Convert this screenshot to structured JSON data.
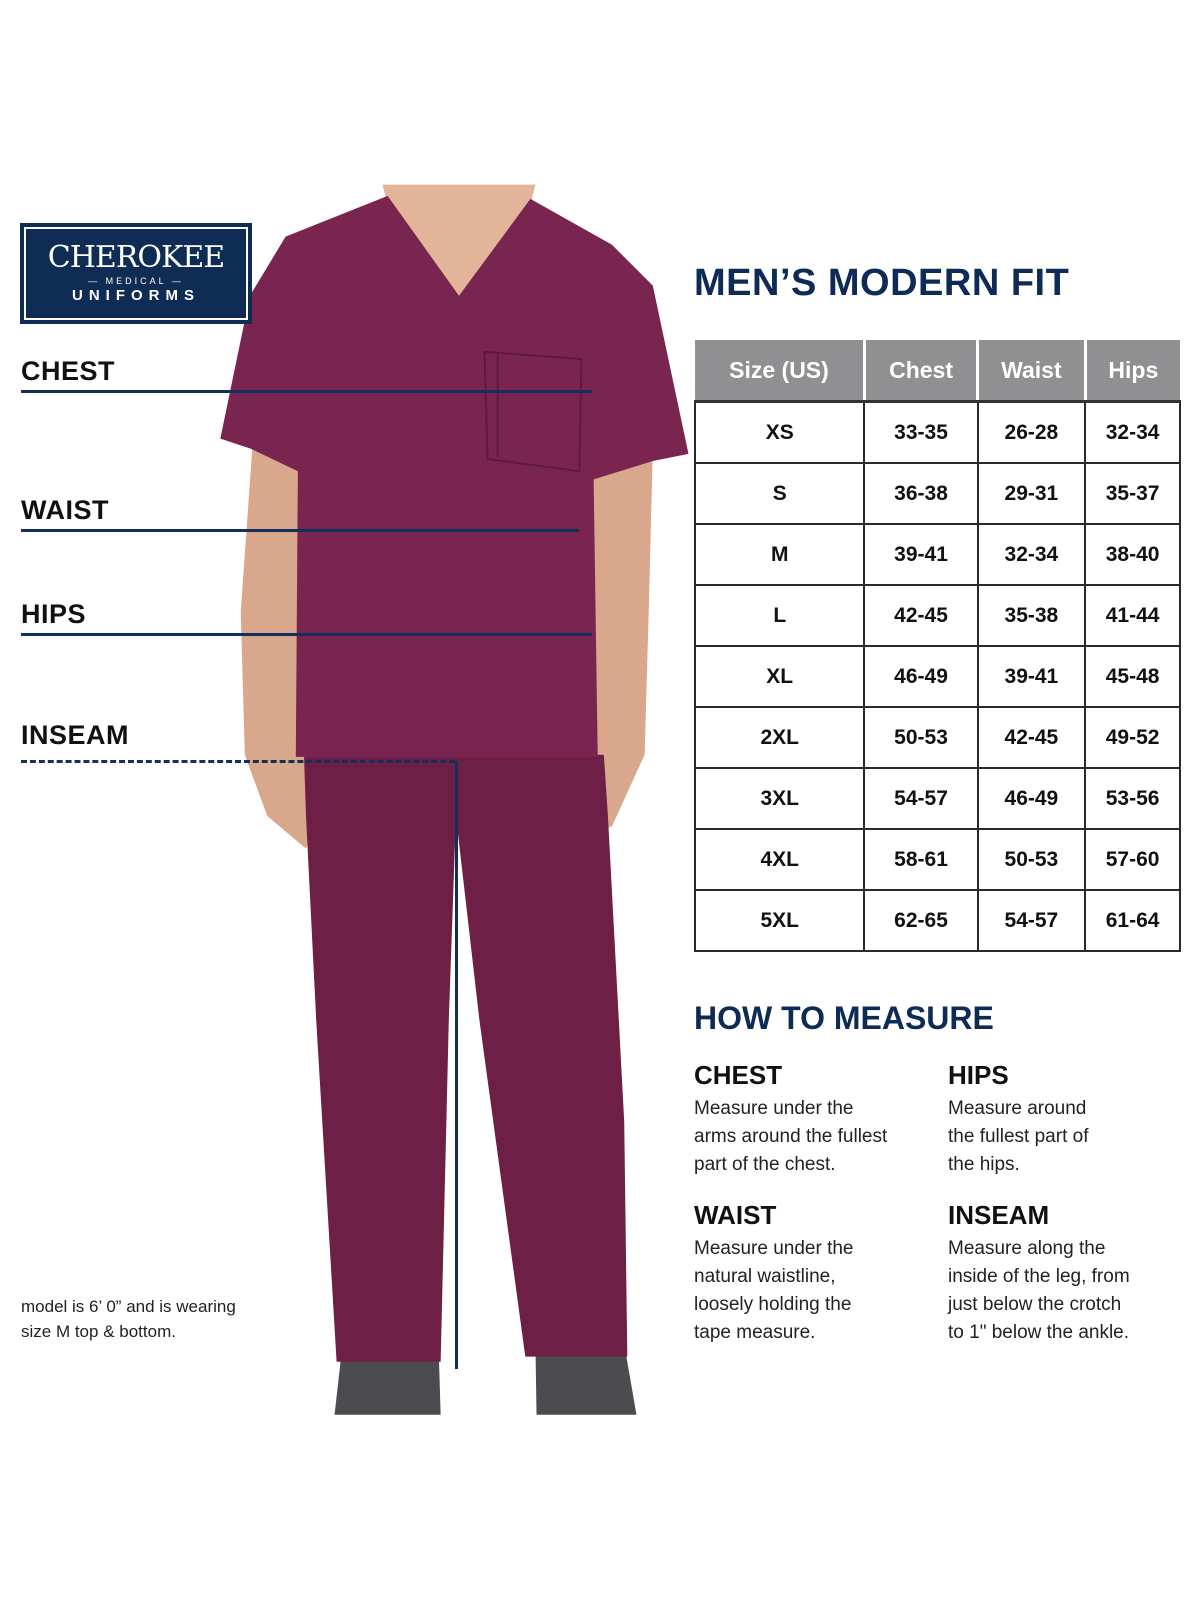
{
  "logo": {
    "brand": "CHEROKEE",
    "sub": "— MEDICAL —",
    "line": "UNIFORMS"
  },
  "measure_labels": {
    "chest": "CHEST",
    "waist": "WAIST",
    "hips": "HIPS",
    "inseam": "INSEAM"
  },
  "footnote": [
    "model is 6’ 0” and is wearing",
    "size M top & bottom."
  ],
  "title": "MEN’S MODERN FIT",
  "table": {
    "headers": [
      "Size (US)",
      "Chest",
      "Waist",
      "Hips"
    ],
    "rows": [
      [
        "XS",
        "33-35",
        "26-28",
        "32-34"
      ],
      [
        "S",
        "36-38",
        "29-31",
        "35-37"
      ],
      [
        "M",
        "39-41",
        "32-34",
        "38-40"
      ],
      [
        "L",
        "42-45",
        "35-38",
        "41-44"
      ],
      [
        "XL",
        "46-49",
        "39-41",
        "45-48"
      ],
      [
        "2XL",
        "50-53",
        "42-45",
        "49-52"
      ],
      [
        "3XL",
        "54-57",
        "46-49",
        "53-56"
      ],
      [
        "4XL",
        "58-61",
        "50-53",
        "57-60"
      ],
      [
        "5XL",
        "62-65",
        "54-57",
        "61-64"
      ]
    ]
  },
  "how_to": {
    "title": "HOW TO MEASURE",
    "items": [
      {
        "heading": "CHEST",
        "lines": [
          "Measure under the",
          "arms around the fullest",
          "part of the chest."
        ]
      },
      {
        "heading": "HIPS",
        "lines": [
          "Measure around",
          "the fullest part of",
          "the hips."
        ]
      },
      {
        "heading": "WAIST",
        "lines": [
          "Measure under the",
          "natural waistline,",
          "loosely holding the",
          "tape measure."
        ]
      },
      {
        "heading": "INSEAM",
        "lines": [
          "Measure along the",
          "inside of the leg, from",
          "just below the crotch",
          "to 1\" below the ankle."
        ]
      }
    ]
  },
  "colors": {
    "navy": "#0f2c55",
    "garment": "#7a2550",
    "table_header": "#909092"
  }
}
